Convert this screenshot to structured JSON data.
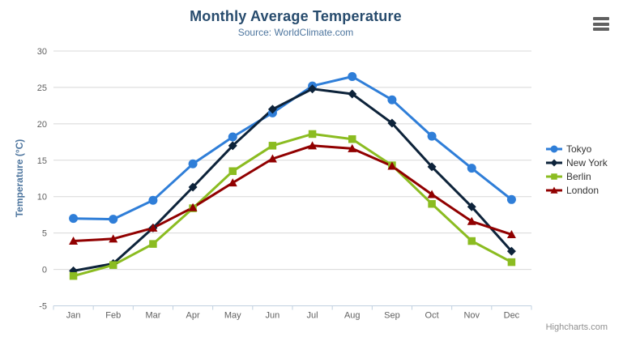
{
  "header": {
    "title": "Monthly Average Temperature",
    "subtitle": "Source: WorldClimate.com"
  },
  "toolbar": {
    "export_icon": "hamburger-icon"
  },
  "credits": {
    "label": "Highcharts.com"
  },
  "colors": {
    "title_text": "#274b6d",
    "subtitle_text": "#4d759e",
    "axis_label": "#606060",
    "axis_title": "#4d759e",
    "gridline": "#d8d8d8",
    "axis_line": "#c0d0e0",
    "legend_text": "#333333",
    "credits_text": "#909090",
    "export_icon": "#606060"
  },
  "chart_data": {
    "type": "line",
    "title": "Monthly Average Temperature",
    "subtitle": "Source: WorldClimate.com",
    "xlabel": "",
    "ylabel": "Temperature (°C)",
    "ylim": [
      -5,
      30
    ],
    "ytick_step": 5,
    "grid": true,
    "legend_position": "right",
    "categories": [
      "Jan",
      "Feb",
      "Mar",
      "Apr",
      "May",
      "Jun",
      "Jul",
      "Aug",
      "Sep",
      "Oct",
      "Nov",
      "Dec"
    ],
    "series": [
      {
        "name": "Tokyo",
        "color": "#2f7ed8",
        "symbol": "circle",
        "values": [
          7.0,
          6.9,
          9.5,
          14.5,
          18.2,
          21.5,
          25.2,
          26.5,
          23.3,
          18.3,
          13.9,
          9.6
        ]
      },
      {
        "name": "New York",
        "color": "#0d233a",
        "symbol": "diamond",
        "values": [
          -0.2,
          0.8,
          5.7,
          11.3,
          17.0,
          22.0,
          24.8,
          24.1,
          20.1,
          14.1,
          8.6,
          2.5
        ]
      },
      {
        "name": "Berlin",
        "color": "#8bbc21",
        "symbol": "square",
        "values": [
          -0.9,
          0.6,
          3.5,
          8.4,
          13.5,
          17.0,
          18.6,
          17.9,
          14.3,
          9.0,
          3.9,
          1.0
        ]
      },
      {
        "name": "London",
        "color": "#910000",
        "symbol": "triangle",
        "values": [
          3.9,
          4.2,
          5.7,
          8.5,
          11.9,
          15.2,
          17.0,
          16.6,
          14.2,
          10.3,
          6.6,
          4.8
        ]
      }
    ]
  }
}
